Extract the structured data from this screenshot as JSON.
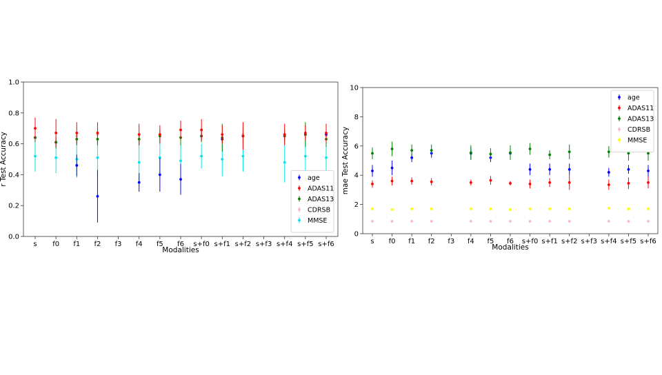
{
  "chart_data": [
    {
      "type": "scatter",
      "xlabel": "Modalities",
      "ylabel": "r Test Accuracy",
      "ylim": [
        0.0,
        1.0
      ],
      "yticks": [
        0.0,
        0.2,
        0.4,
        0.6,
        0.8,
        1.0
      ],
      "ytick_labels": [
        "0.0",
        "0.2",
        "0.4",
        "0.6",
        "0.8",
        "1.0"
      ],
      "categories": [
        "s",
        "f0",
        "f1",
        "f2",
        "f3",
        "f4",
        "f5",
        "f6",
        "s+f0",
        "s+f1",
        "s+f2",
        "s+f3",
        "s+f4",
        "s+f5",
        "s+f6"
      ],
      "legend_position": "lower-right",
      "grid": false,
      "series": [
        {
          "name": "age",
          "color": "#0000ff",
          "values": [
            0.64,
            0.61,
            0.46,
            0.26,
            null,
            0.35,
            0.4,
            0.37,
            0.65,
            0.63,
            0.65,
            null,
            0.65,
            0.66,
            0.66
          ],
          "err": [
            0.02,
            0.02,
            0.07,
            0.17,
            null,
            0.06,
            0.11,
            0.1,
            0.02,
            0.02,
            0.02,
            null,
            0.02,
            0.02,
            0.02
          ]
        },
        {
          "name": "ADAS11",
          "color": "#ff0000",
          "values": [
            0.7,
            0.67,
            0.67,
            0.67,
            null,
            0.66,
            0.66,
            0.69,
            0.69,
            0.66,
            0.65,
            null,
            0.66,
            0.67,
            0.67
          ],
          "err": [
            0.07,
            0.09,
            0.07,
            0.07,
            null,
            0.07,
            0.06,
            0.06,
            0.07,
            0.06,
            0.09,
            null,
            0.07,
            0.05,
            0.06
          ]
        },
        {
          "name": "ADAS13",
          "color": "#008000",
          "values": [
            0.64,
            0.61,
            0.63,
            0.63,
            null,
            0.63,
            0.65,
            0.64,
            0.65,
            0.64,
            0.65,
            null,
            0.65,
            0.66,
            0.63
          ],
          "err": [
            0.03,
            0.04,
            0.04,
            0.04,
            null,
            0.04,
            0.04,
            0.05,
            0.04,
            0.09,
            0.05,
            null,
            0.04,
            0.08,
            0.05
          ]
        },
        {
          "name": "CDRSB",
          "color": "#ffb6c1",
          "values": [
            0.64,
            0.61,
            0.65,
            0.66,
            null,
            0.66,
            0.65,
            0.64,
            0.65,
            0.66,
            0.66,
            null,
            0.65,
            0.66,
            0.65
          ],
          "err": [
            0.03,
            0.03,
            0.03,
            0.03,
            null,
            0.03,
            0.03,
            0.03,
            0.03,
            0.03,
            0.03,
            null,
            0.03,
            0.03,
            0.03
          ]
        },
        {
          "name": "MMSE",
          "color": "#00e5ee",
          "values": [
            0.52,
            0.51,
            0.5,
            0.51,
            null,
            0.48,
            0.51,
            0.49,
            0.52,
            0.5,
            0.52,
            null,
            0.48,
            0.52,
            0.51
          ],
          "err": [
            0.1,
            0.1,
            0.12,
            0.12,
            null,
            0.13,
            0.1,
            0.13,
            0.08,
            0.11,
            0.1,
            null,
            0.13,
            0.11,
            0.1
          ]
        }
      ]
    },
    {
      "type": "scatter",
      "xlabel": "Modalities",
      "ylabel": "mae Test Accuracy",
      "ylim": [
        0,
        10
      ],
      "yticks": [
        0,
        2,
        4,
        6,
        8,
        10
      ],
      "ytick_labels": [
        "0",
        "2",
        "4",
        "6",
        "8",
        "10"
      ],
      "categories": [
        "s",
        "f0",
        "f1",
        "f2",
        "f3",
        "f4",
        "f5",
        "f6",
        "s+f0",
        "s+f1",
        "s+f2",
        "s+f3",
        "s+f4",
        "s+f5",
        "s+f6"
      ],
      "legend_position": "upper-right",
      "grid": false,
      "series": [
        {
          "name": "age",
          "color": "#0000ff",
          "values": [
            4.3,
            4.5,
            5.2,
            5.5,
            null,
            5.5,
            5.2,
            5.5,
            4.4,
            4.4,
            4.4,
            null,
            4.2,
            4.4,
            4.3
          ],
          "err": [
            0.4,
            0.5,
            0.3,
            0.3,
            null,
            0.4,
            0.3,
            0.3,
            0.4,
            0.4,
            0.4,
            null,
            0.3,
            0.3,
            0.4
          ]
        },
        {
          "name": "ADAS11",
          "color": "#ff0000",
          "values": [
            3.4,
            3.6,
            3.6,
            3.55,
            null,
            3.5,
            3.65,
            3.45,
            3.4,
            3.5,
            3.5,
            null,
            3.35,
            3.45,
            3.5
          ],
          "err": [
            0.25,
            0.3,
            0.25,
            0.25,
            null,
            0.2,
            0.3,
            0.15,
            0.3,
            0.3,
            0.5,
            null,
            0.35,
            0.4,
            0.4
          ]
        },
        {
          "name": "ADAS13",
          "color": "#008000",
          "values": [
            5.5,
            5.8,
            5.7,
            5.7,
            null,
            5.55,
            5.45,
            5.55,
            5.8,
            5.4,
            5.6,
            null,
            5.6,
            5.5,
            5.5
          ],
          "err": [
            0.4,
            0.5,
            0.4,
            0.4,
            null,
            0.5,
            0.4,
            0.5,
            0.4,
            0.3,
            0.5,
            null,
            0.4,
            0.5,
            0.5
          ]
        },
        {
          "name": "CDRSB",
          "color": "#ffb6c1",
          "values": [
            0.85,
            0.85,
            0.85,
            0.85,
            null,
            0.85,
            0.85,
            0.85,
            0.85,
            0.85,
            0.85,
            null,
            0.85,
            0.85,
            0.85
          ],
          "err": [
            0.05,
            0.05,
            0.05,
            0.05,
            null,
            0.05,
            0.05,
            0.05,
            0.05,
            0.05,
            0.05,
            null,
            0.05,
            0.05,
            0.05
          ]
        },
        {
          "name": "MMSE",
          "color": "#ffff00",
          "values": [
            1.7,
            1.65,
            1.7,
            1.7,
            null,
            1.7,
            1.7,
            1.65,
            1.7,
            1.7,
            1.7,
            null,
            1.75,
            1.7,
            1.7
          ],
          "err": [
            0.05,
            0.05,
            0.05,
            0.05,
            null,
            0.05,
            0.05,
            0.05,
            0.05,
            0.05,
            0.05,
            null,
            0.05,
            0.05,
            0.05
          ]
        }
      ]
    }
  ]
}
